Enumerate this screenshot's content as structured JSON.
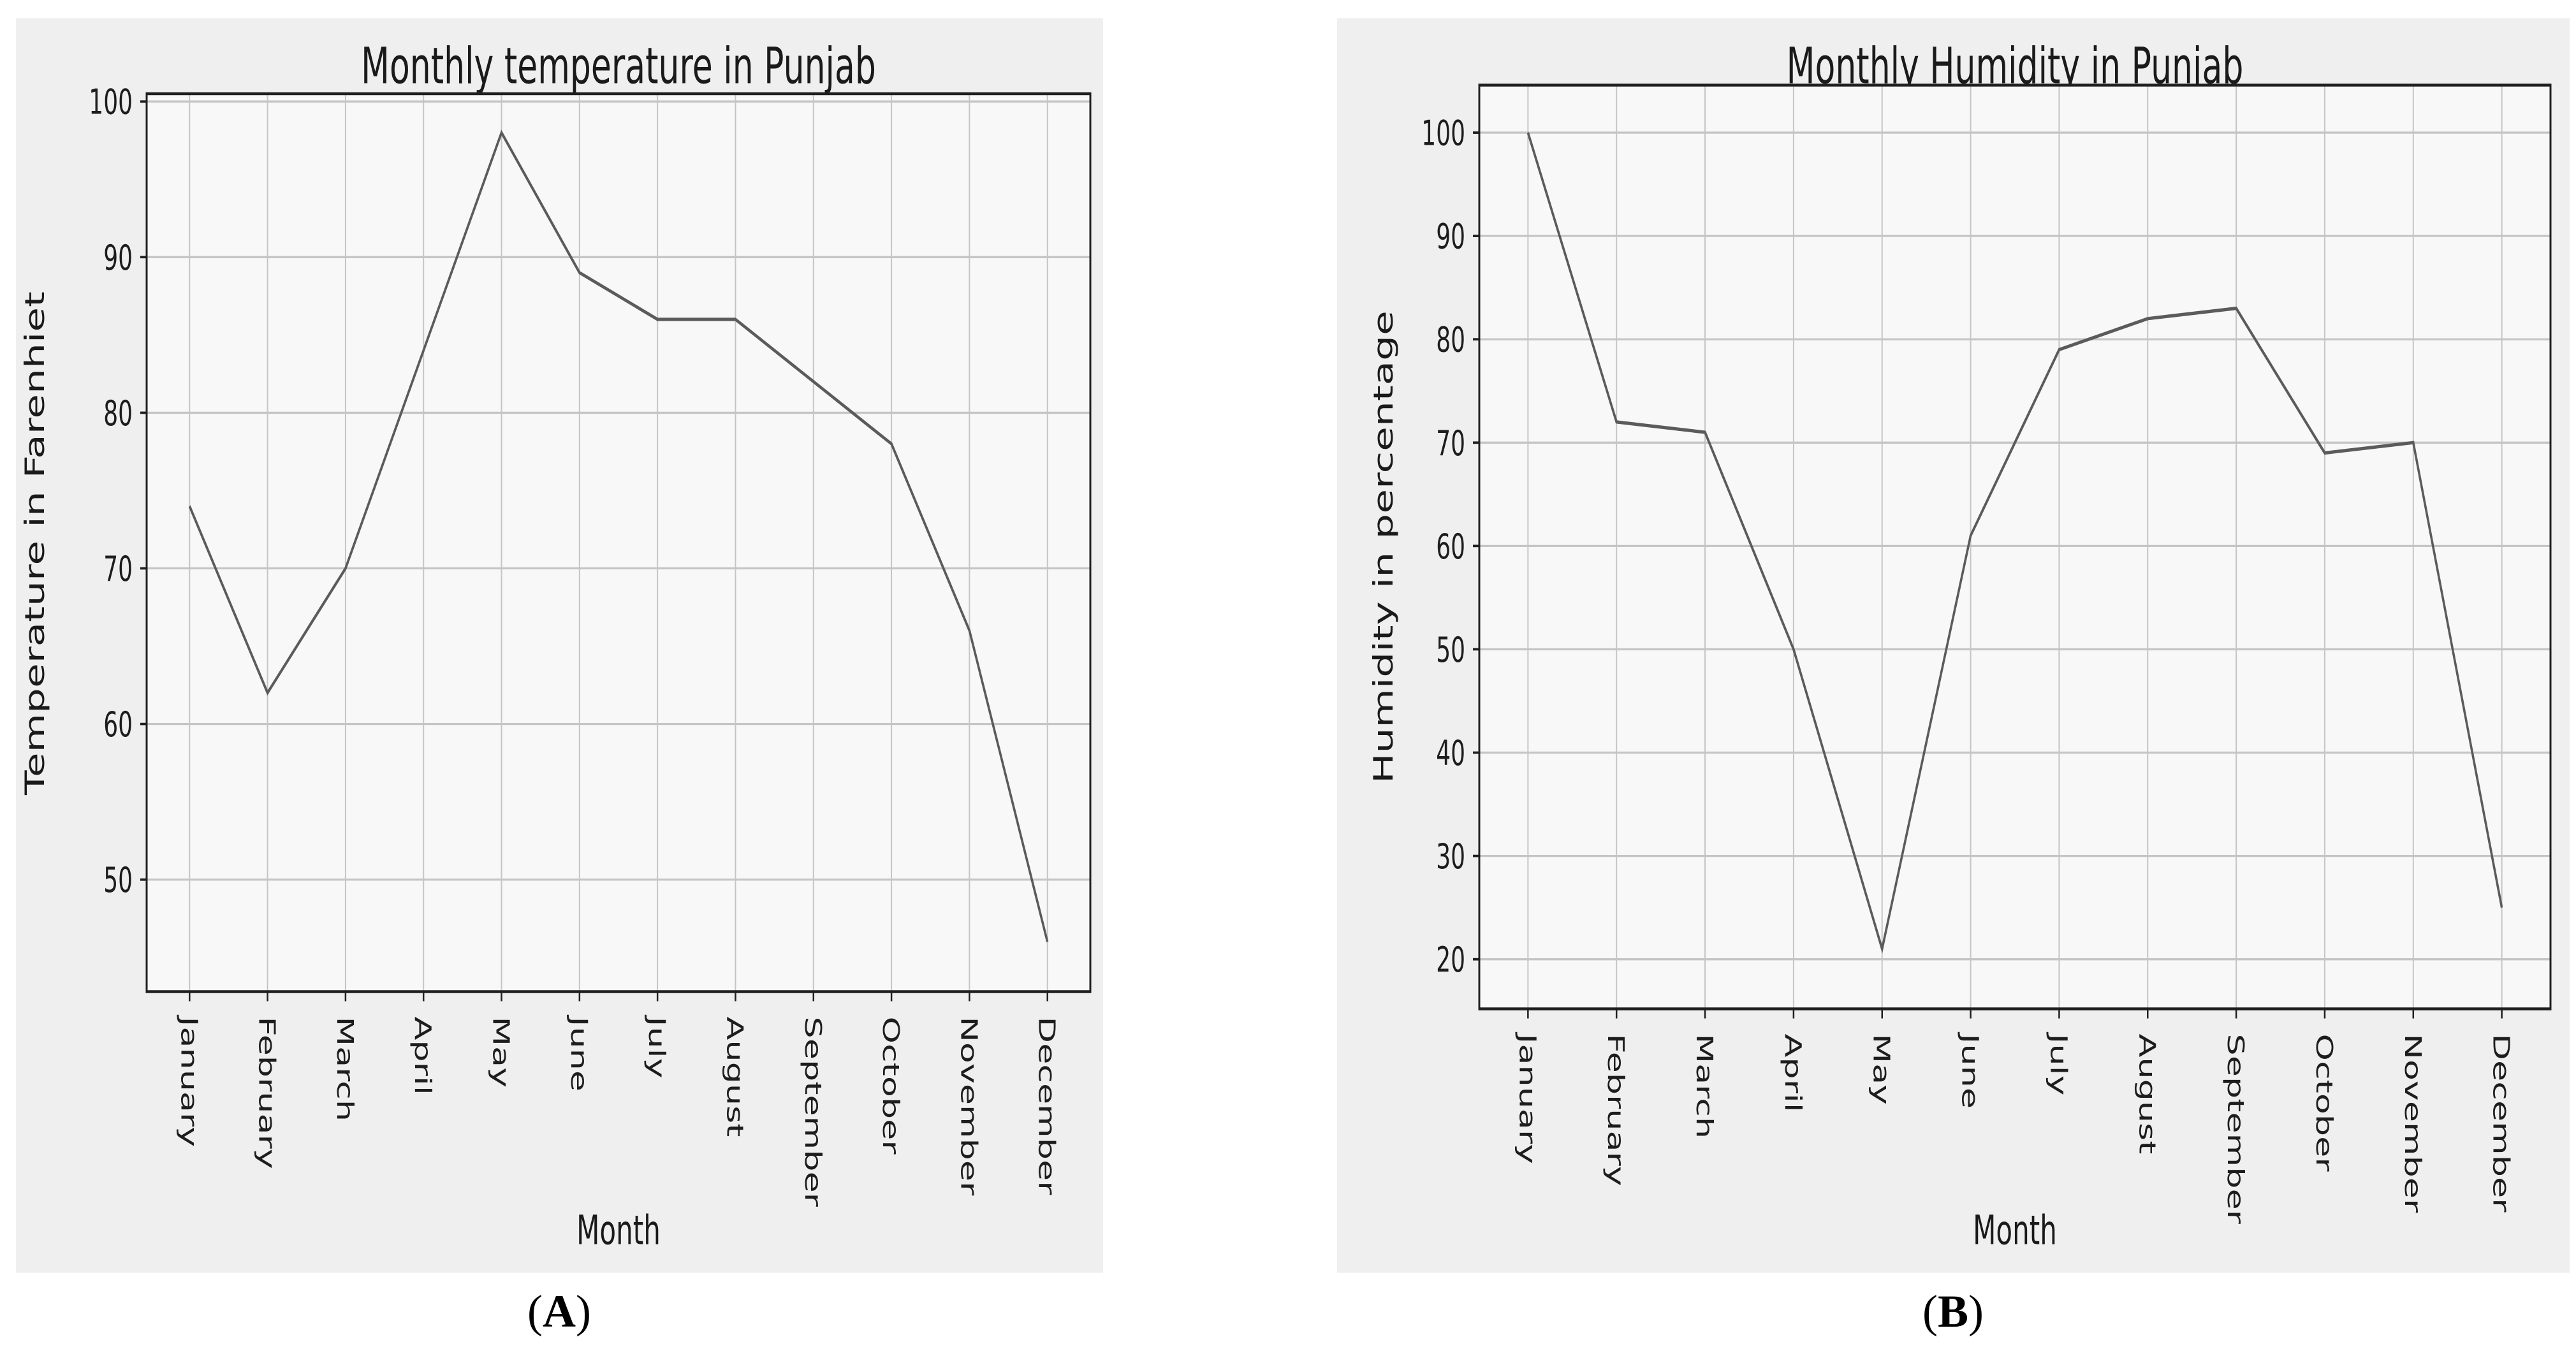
{
  "page": {
    "background": "#ffffff"
  },
  "colors": {
    "figure_bg": "#efefef",
    "plot_bg": "#f8f8f8",
    "grid": "#c5c5c5",
    "spine": "#1f1f1f",
    "text": "#1d1d1d"
  },
  "chart_data": [
    {
      "type": "line",
      "panel_label": "A",
      "title": "Monthly temperature in Punjab",
      "xlabel": "Month",
      "ylabel": "Temperature in Farenhiet",
      "categories": [
        "January",
        "February",
        "March",
        "April",
        "May",
        "June",
        "July",
        "August",
        "September",
        "October",
        "November",
        "December"
      ],
      "values": [
        74,
        62,
        70,
        84,
        98,
        89,
        86,
        86,
        82,
        78,
        66,
        46
      ],
      "yticks": [
        50,
        60,
        70,
        80,
        90,
        100
      ],
      "ylim": [
        42.8,
        100.5
      ],
      "grid": true,
      "x_tick_rotation": 90,
      "line_color": "#5b5b5b",
      "caption": {
        "open": "(",
        "letter": "A",
        "close": ")"
      }
    },
    {
      "type": "line",
      "panel_label": "B",
      "title": "Monthly Humidity in Punjab",
      "xlabel": "Month",
      "ylabel": "Humidity in percentage",
      "categories": [
        "January",
        "February",
        "March",
        "April",
        "May",
        "June",
        "July",
        "August",
        "September",
        "October",
        "November",
        "December"
      ],
      "values": [
        100,
        72,
        71,
        50,
        21,
        61,
        79,
        82,
        83,
        69,
        70,
        25
      ],
      "yticks": [
        20,
        30,
        40,
        50,
        60,
        70,
        80,
        90,
        100
      ],
      "ylim": [
        15.2,
        104.6
      ],
      "grid": true,
      "x_tick_rotation": 90,
      "line_color": "#5b5b5b",
      "caption": {
        "open": "(",
        "letter": "B",
        "close": ")"
      }
    }
  ]
}
